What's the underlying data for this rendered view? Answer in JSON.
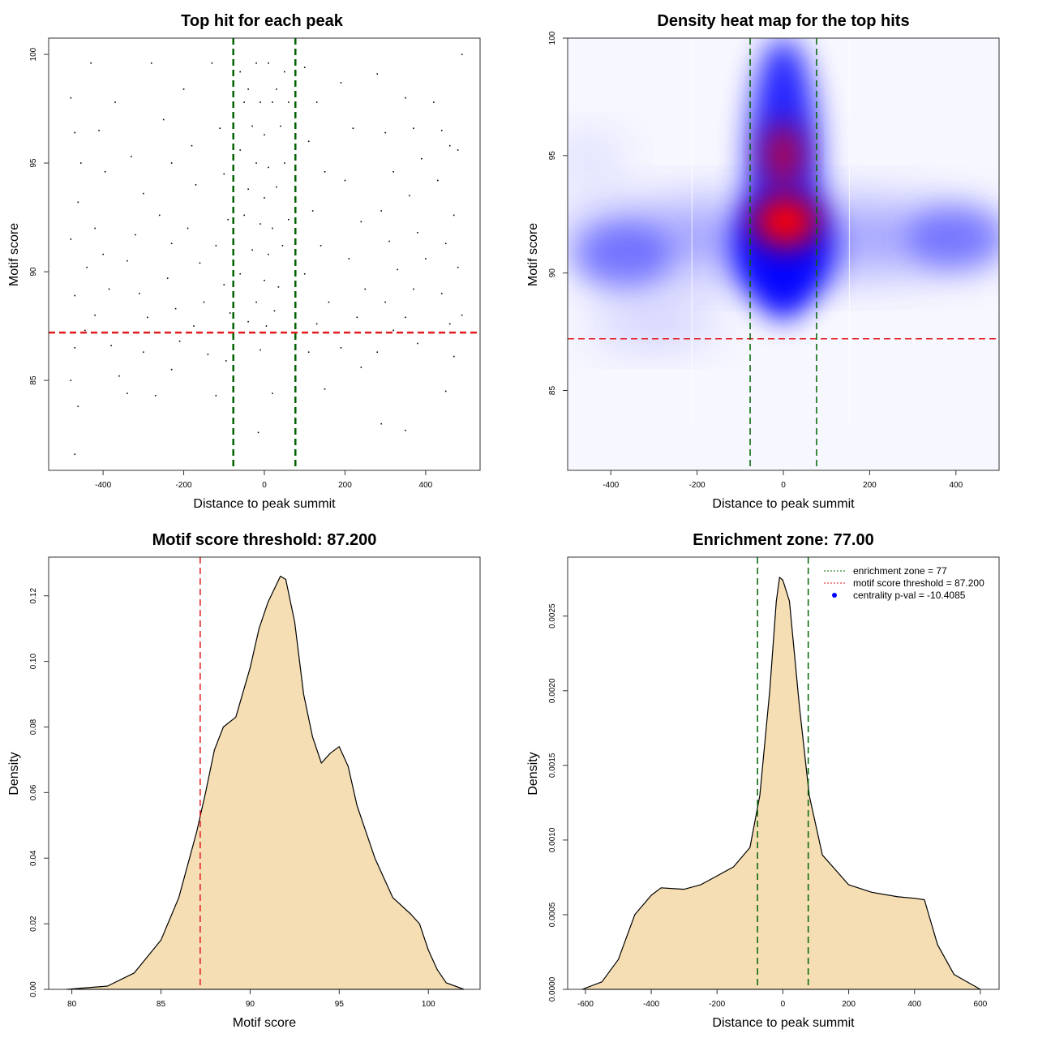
{
  "chart_data": [
    {
      "type": "scatter",
      "title": "Top hit for each peak",
      "xlabel": "Distance to peak summit",
      "ylabel": "Motif score",
      "xlim": [
        -535,
        535
      ],
      "ylim": [
        80.86,
        100.75
      ],
      "xticks": [
        -400,
        -200,
        0,
        200,
        400
      ],
      "yticks": [
        85,
        90,
        95,
        100
      ],
      "hlines": [
        {
          "y": 87.2,
          "color": "#e31a1c",
          "style": "dashed"
        }
      ],
      "vlines": [
        {
          "x": -77,
          "color": "#006400",
          "style": "dashed"
        },
        {
          "x": 77,
          "color": "#006400",
          "style": "dashed"
        }
      ],
      "points": [
        [
          -480,
          98
        ],
        [
          -470,
          96.4
        ],
        [
          -455,
          95
        ],
        [
          -462,
          93.2
        ],
        [
          -480,
          91.5
        ],
        [
          -440,
          90.2
        ],
        [
          -470,
          88.9
        ],
        [
          -445,
          87.3
        ],
        [
          -470,
          86.5
        ],
        [
          -480,
          85
        ],
        [
          -462,
          83.8
        ],
        [
          -470,
          81.6
        ],
        [
          -430,
          99.6
        ],
        [
          -410,
          96.5
        ],
        [
          -395,
          94.6
        ],
        [
          -420,
          92
        ],
        [
          -400,
          90.8
        ],
        [
          -385,
          89.2
        ],
        [
          -420,
          88
        ],
        [
          -380,
          86.6
        ],
        [
          -360,
          85.2
        ],
        [
          -340,
          84.4
        ],
        [
          -370,
          97.8
        ],
        [
          -330,
          95.3
        ],
        [
          -300,
          93.6
        ],
        [
          -320,
          91.7
        ],
        [
          -340,
          90.5
        ],
        [
          -310,
          89
        ],
        [
          -290,
          87.9
        ],
        [
          -300,
          86.3
        ],
        [
          -270,
          84.3
        ],
        [
          -280,
          99.6
        ],
        [
          -250,
          97
        ],
        [
          -230,
          95
        ],
        [
          -260,
          92.6
        ],
        [
          -230,
          91.3
        ],
        [
          -240,
          89.7
        ],
        [
          -220,
          88.3
        ],
        [
          -210,
          86.8
        ],
        [
          -230,
          85.5
        ],
        [
          -200,
          98.4
        ],
        [
          -180,
          95.8
        ],
        [
          -170,
          94
        ],
        [
          -190,
          92
        ],
        [
          -160,
          90.4
        ],
        [
          -150,
          88.6
        ],
        [
          -175,
          87.5
        ],
        [
          -140,
          86.2
        ],
        [
          -120,
          84.3
        ],
        [
          -130,
          99.6
        ],
        [
          -110,
          96.6
        ],
        [
          -100,
          94.5
        ],
        [
          -90,
          92.4
        ],
        [
          -120,
          91.2
        ],
        [
          -100,
          89.4
        ],
        [
          -85,
          88.1
        ],
        [
          -95,
          85.9
        ],
        [
          -60,
          99.2
        ],
        [
          -40,
          98.4
        ],
        [
          -20,
          99.6
        ],
        [
          10,
          99.6
        ],
        [
          30,
          98.4
        ],
        [
          50,
          99.2
        ],
        [
          -50,
          97.8
        ],
        [
          -10,
          97.8
        ],
        [
          20,
          97.8
        ],
        [
          60,
          97.8
        ],
        [
          -30,
          96.7
        ],
        [
          0,
          96.3
        ],
        [
          40,
          96.7
        ],
        [
          -60,
          95.6
        ],
        [
          -20,
          95
        ],
        [
          10,
          94.8
        ],
        [
          50,
          95
        ],
        [
          -40,
          93.8
        ],
        [
          0,
          93.4
        ],
        [
          30,
          93.9
        ],
        [
          -50,
          92.6
        ],
        [
          -10,
          92.2
        ],
        [
          20,
          92
        ],
        [
          60,
          92.4
        ],
        [
          -30,
          91
        ],
        [
          10,
          90.8
        ],
        [
          45,
          91.2
        ],
        [
          -60,
          89.9
        ],
        [
          0,
          89.6
        ],
        [
          35,
          89.3
        ],
        [
          -20,
          88.6
        ],
        [
          25,
          88.2
        ],
        [
          -40,
          87.7
        ],
        [
          5,
          87.5
        ],
        [
          -10,
          86.4
        ],
        [
          20,
          84.4
        ],
        [
          -15,
          82.6
        ],
        [
          100,
          99.4
        ],
        [
          130,
          97.8
        ],
        [
          110,
          96
        ],
        [
          150,
          94.6
        ],
        [
          120,
          92.8
        ],
        [
          140,
          91.2
        ],
        [
          100,
          89.9
        ],
        [
          160,
          88.6
        ],
        [
          130,
          87.6
        ],
        [
          110,
          86.3
        ],
        [
          150,
          84.6
        ],
        [
          190,
          98.7
        ],
        [
          220,
          96.6
        ],
        [
          200,
          94.2
        ],
        [
          240,
          92.3
        ],
        [
          210,
          90.6
        ],
        [
          250,
          89.2
        ],
        [
          230,
          87.9
        ],
        [
          190,
          86.5
        ],
        [
          240,
          85.6
        ],
        [
          280,
          99.1
        ],
        [
          300,
          96.4
        ],
        [
          320,
          94.6
        ],
        [
          290,
          92.8
        ],
        [
          310,
          91.4
        ],
        [
          330,
          90.1
        ],
        [
          300,
          88.6
        ],
        [
          320,
          87.3
        ],
        [
          280,
          86.3
        ],
        [
          290,
          83
        ],
        [
          350,
          98
        ],
        [
          370,
          96.6
        ],
        [
          390,
          95.2
        ],
        [
          360,
          93.5
        ],
        [
          380,
          91.8
        ],
        [
          400,
          90.6
        ],
        [
          370,
          89.2
        ],
        [
          350,
          87.9
        ],
        [
          380,
          86.7
        ],
        [
          350,
          82.7
        ],
        [
          420,
          97.8
        ],
        [
          440,
          96.5
        ],
        [
          460,
          95.8
        ],
        [
          430,
          94.2
        ],
        [
          470,
          92.6
        ],
        [
          450,
          91.3
        ],
        [
          480,
          90.2
        ],
        [
          440,
          89
        ],
        [
          460,
          87.6
        ],
        [
          470,
          86.1
        ],
        [
          450,
          84.5
        ],
        [
          490,
          100
        ],
        [
          480,
          95.6
        ],
        [
          490,
          88
        ]
      ],
      "point_color": "#000000"
    },
    {
      "type": "heatmap",
      "title": "Density heat map for the top hits",
      "xlabel": "Distance to peak summit",
      "ylabel": "Motif score",
      "xlim": [
        -500,
        500
      ],
      "ylim": [
        81.6,
        100
      ],
      "xticks": [
        -400,
        -200,
        0,
        200,
        400
      ],
      "yticks": [
        85,
        90,
        95,
        100
      ],
      "colors": {
        "low": "#ffffff",
        "mid": "#0000ff",
        "high": "#ff0000"
      },
      "density_peaks": [
        {
          "x": 0,
          "y": 92.2,
          "level": "high"
        },
        {
          "x": 0,
          "y": 95.0,
          "level": "high"
        },
        {
          "x": -370,
          "y": 90.7,
          "level": "mid"
        },
        {
          "x": 400,
          "y": 91.5,
          "level": "mid"
        }
      ],
      "hlines": [
        {
          "y": 87.2,
          "color": "#e31a1c",
          "style": "dashed"
        }
      ],
      "vlines": [
        {
          "x": -77,
          "color": "#006400",
          "style": "dashed"
        },
        {
          "x": 77,
          "color": "#006400",
          "style": "dashed"
        }
      ]
    },
    {
      "type": "area",
      "title": "Motif score threshold: 87.200",
      "xlabel": "Motif score",
      "ylabel": "Density",
      "xlim": [
        78.7,
        102.9
      ],
      "ylim": [
        0,
        0.1318
      ],
      "xticks": [
        80,
        85,
        90,
        95,
        100
      ],
      "yticks": [
        "0.00",
        "0.02",
        "0.04",
        "0.06",
        "0.08",
        "0.10",
        "0.12"
      ],
      "fill": "#f5deb3",
      "x": [
        79.7,
        82,
        83.5,
        85,
        86,
        87,
        87.5,
        88,
        88.5,
        89.2,
        90,
        90.5,
        91,
        91.7,
        92,
        92.5,
        93,
        93.5,
        94,
        94.5,
        95,
        95.5,
        96,
        97,
        98,
        99,
        99.5,
        100,
        100.5,
        101,
        102
      ],
      "y": [
        0,
        0.001,
        0.005,
        0.015,
        0.028,
        0.048,
        0.06,
        0.073,
        0.08,
        0.083,
        0.098,
        0.11,
        0.118,
        0.126,
        0.125,
        0.112,
        0.09,
        0.077,
        0.069,
        0.072,
        0.074,
        0.068,
        0.056,
        0.04,
        0.028,
        0.023,
        0.02,
        0.012,
        0.006,
        0.002,
        0
      ],
      "vlines": [
        {
          "x": 87.2,
          "color": "#e31a1c",
          "style": "dashed"
        }
      ]
    },
    {
      "type": "area",
      "title": "Enrichment zone: 77.00",
      "xlabel": "Distance to peak summit",
      "ylabel": "Density",
      "xlim": [
        -654,
        657
      ],
      "ylim": [
        0,
        0.002895
      ],
      "xticks": [
        -600,
        -400,
        -200,
        0,
        200,
        400,
        600
      ],
      "yticks": [
        "0.0000",
        "0.0005",
        "0.0010",
        "0.0015",
        "0.0020",
        "0.0025"
      ],
      "fill": "#f5deb3",
      "x": [
        -610,
        -550,
        -500,
        -450,
        -400,
        -370,
        -300,
        -250,
        -200,
        -150,
        -100,
        -70,
        -40,
        -20,
        -10,
        0,
        20,
        50,
        80,
        120,
        200,
        270,
        350,
        400,
        430,
        470,
        520,
        600
      ],
      "y": [
        0,
        5e-05,
        0.0002,
        0.0005,
        0.00063,
        0.00068,
        0.00067,
        0.0007,
        0.00076,
        0.00082,
        0.00095,
        0.0013,
        0.002,
        0.0026,
        0.00276,
        0.00274,
        0.0026,
        0.0019,
        0.0013,
        0.0009,
        0.0007,
        0.00065,
        0.00062,
        0.00061,
        0.0006,
        0.0003,
        0.0001,
        0
      ],
      "vlines": [
        {
          "x": -77,
          "color": "#006400",
          "style": "dashed"
        },
        {
          "x": 77,
          "color": "#006400",
          "style": "dashed"
        }
      ],
      "legend": {
        "position": "top-right",
        "entries": [
          {
            "label": "enrichment zone = 77",
            "color": "#006400",
            "marker": "dotted-line"
          },
          {
            "label": "motif score threshold = 87.200",
            "color": "#e31a1c",
            "marker": "dotted-line"
          },
          {
            "label": "centrality p-val = -10.4085",
            "color": "#0000ff",
            "marker": "dot"
          }
        ]
      }
    }
  ]
}
